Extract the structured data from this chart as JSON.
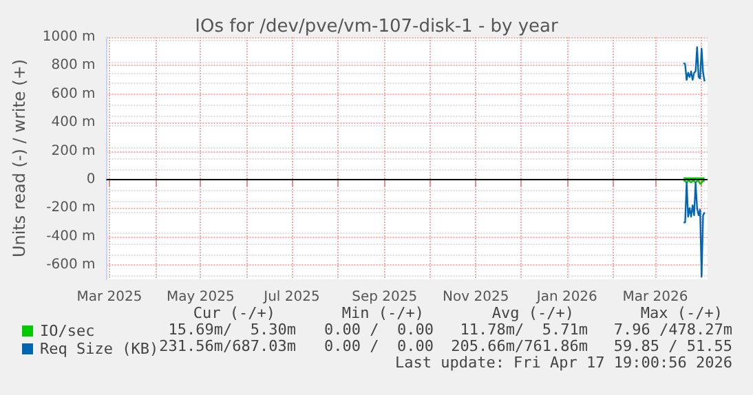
{
  "chart_data": {
    "type": "line",
    "title": "IOs for /dev/pve/vm-107-disk-1 - by year",
    "ylabel": "Units read (-) / write (+)",
    "x": [
      "2026-03-20",
      "2026-03-21",
      "2026-03-22",
      "2026-03-23",
      "2026-03-24",
      "2026-03-25",
      "2026-03-26",
      "2026-03-27",
      "2026-03-28",
      "2026-03-29",
      "2026-03-30",
      "2026-03-31",
      "2026-04-01",
      "2026-04-02",
      "2026-04-03"
    ],
    "series": [
      {
        "name": "IO/sec",
        "color": "#00cc00",
        "values": [
          -10,
          -10,
          -20,
          -10,
          -10,
          -20,
          -10,
          -10,
          -20,
          -10,
          -10,
          -30,
          -20,
          -10,
          -10
        ]
      },
      {
        "color": "#00cc00",
        "values": [
          10,
          10,
          10,
          10,
          10,
          10,
          10,
          10,
          10,
          10,
          10,
          10,
          10,
          10,
          10
        ]
      },
      {
        "name": "Req Size (KB)",
        "color": "#0066b3",
        "values": [
          -300,
          -300,
          -20,
          -260,
          -200,
          -260,
          -180,
          -250,
          -20,
          -200,
          -250,
          -210,
          -680,
          -250,
          -230
        ]
      },
      {
        "color": "#0066b3",
        "values": [
          820,
          810,
          700,
          750,
          720,
          760,
          700,
          750,
          760,
          930,
          720,
          710,
          920,
          750,
          690
        ]
      }
    ],
    "xlim": [
      "2025-02-27",
      "2026-04-05"
    ],
    "xticks": [
      {
        "value": "2025-03-01",
        "label": "Mar 2025"
      },
      {
        "value": "2025-04-01",
        "label": null
      },
      {
        "value": "2025-05-01",
        "label": "May 2025"
      },
      {
        "value": "2025-06-01",
        "label": null
      },
      {
        "value": "2025-07-01",
        "label": "Jul 2025"
      },
      {
        "value": "2025-08-01",
        "label": null
      },
      {
        "value": "2025-09-01",
        "label": "Sep 2025"
      },
      {
        "value": "2025-10-01",
        "label": null
      },
      {
        "value": "2025-11-01",
        "label": "Nov 2025"
      },
      {
        "value": "2025-12-01",
        "label": null
      },
      {
        "value": "2026-01-01",
        "label": "Jan 2026"
      },
      {
        "value": "2026-02-01",
        "label": null
      },
      {
        "value": "2026-03-01",
        "label": "Mar 2026"
      },
      {
        "value": "2026-04-01",
        "label": null
      }
    ],
    "ylim": [
      -700,
      1000
    ],
    "yticks": [
      {
        "value": -600,
        "label": "-600 m"
      },
      {
        "value": -400,
        "label": "-400 m"
      },
      {
        "value": -200,
        "label": "-200 m"
      },
      0,
      {
        "value": 200,
        "label": "200 m"
      },
      {
        "value": 400,
        "label": "400 m"
      },
      {
        "value": 600,
        "label": "600 m"
      },
      {
        "value": 800,
        "label": "800 m"
      },
      {
        "value": 1000,
        "label": "1000 m"
      }
    ],
    "grid": true,
    "legend": "bottom left",
    "marker": "none",
    "line_style": "solid",
    "ref_lines": [
      {
        "axis": "y",
        "value": 0,
        "color": "#000000"
      }
    ],
    "annotations": [
      "Cur (-/+)",
      "Min (-/+)",
      "Avg (-/+)",
      "Max (-/+)",
      "15.69m/  5.30m",
      "0.00 /  0.00",
      "11.78m/  5.71m",
      "7.96 /478.27m",
      "231.56m/687.03m",
      "0.00 /  0.00",
      "205.66m/761.86m",
      "59.85 / 51.55",
      "Last update: Fri Apr 17 19:00:56 2026"
    ]
  }
}
